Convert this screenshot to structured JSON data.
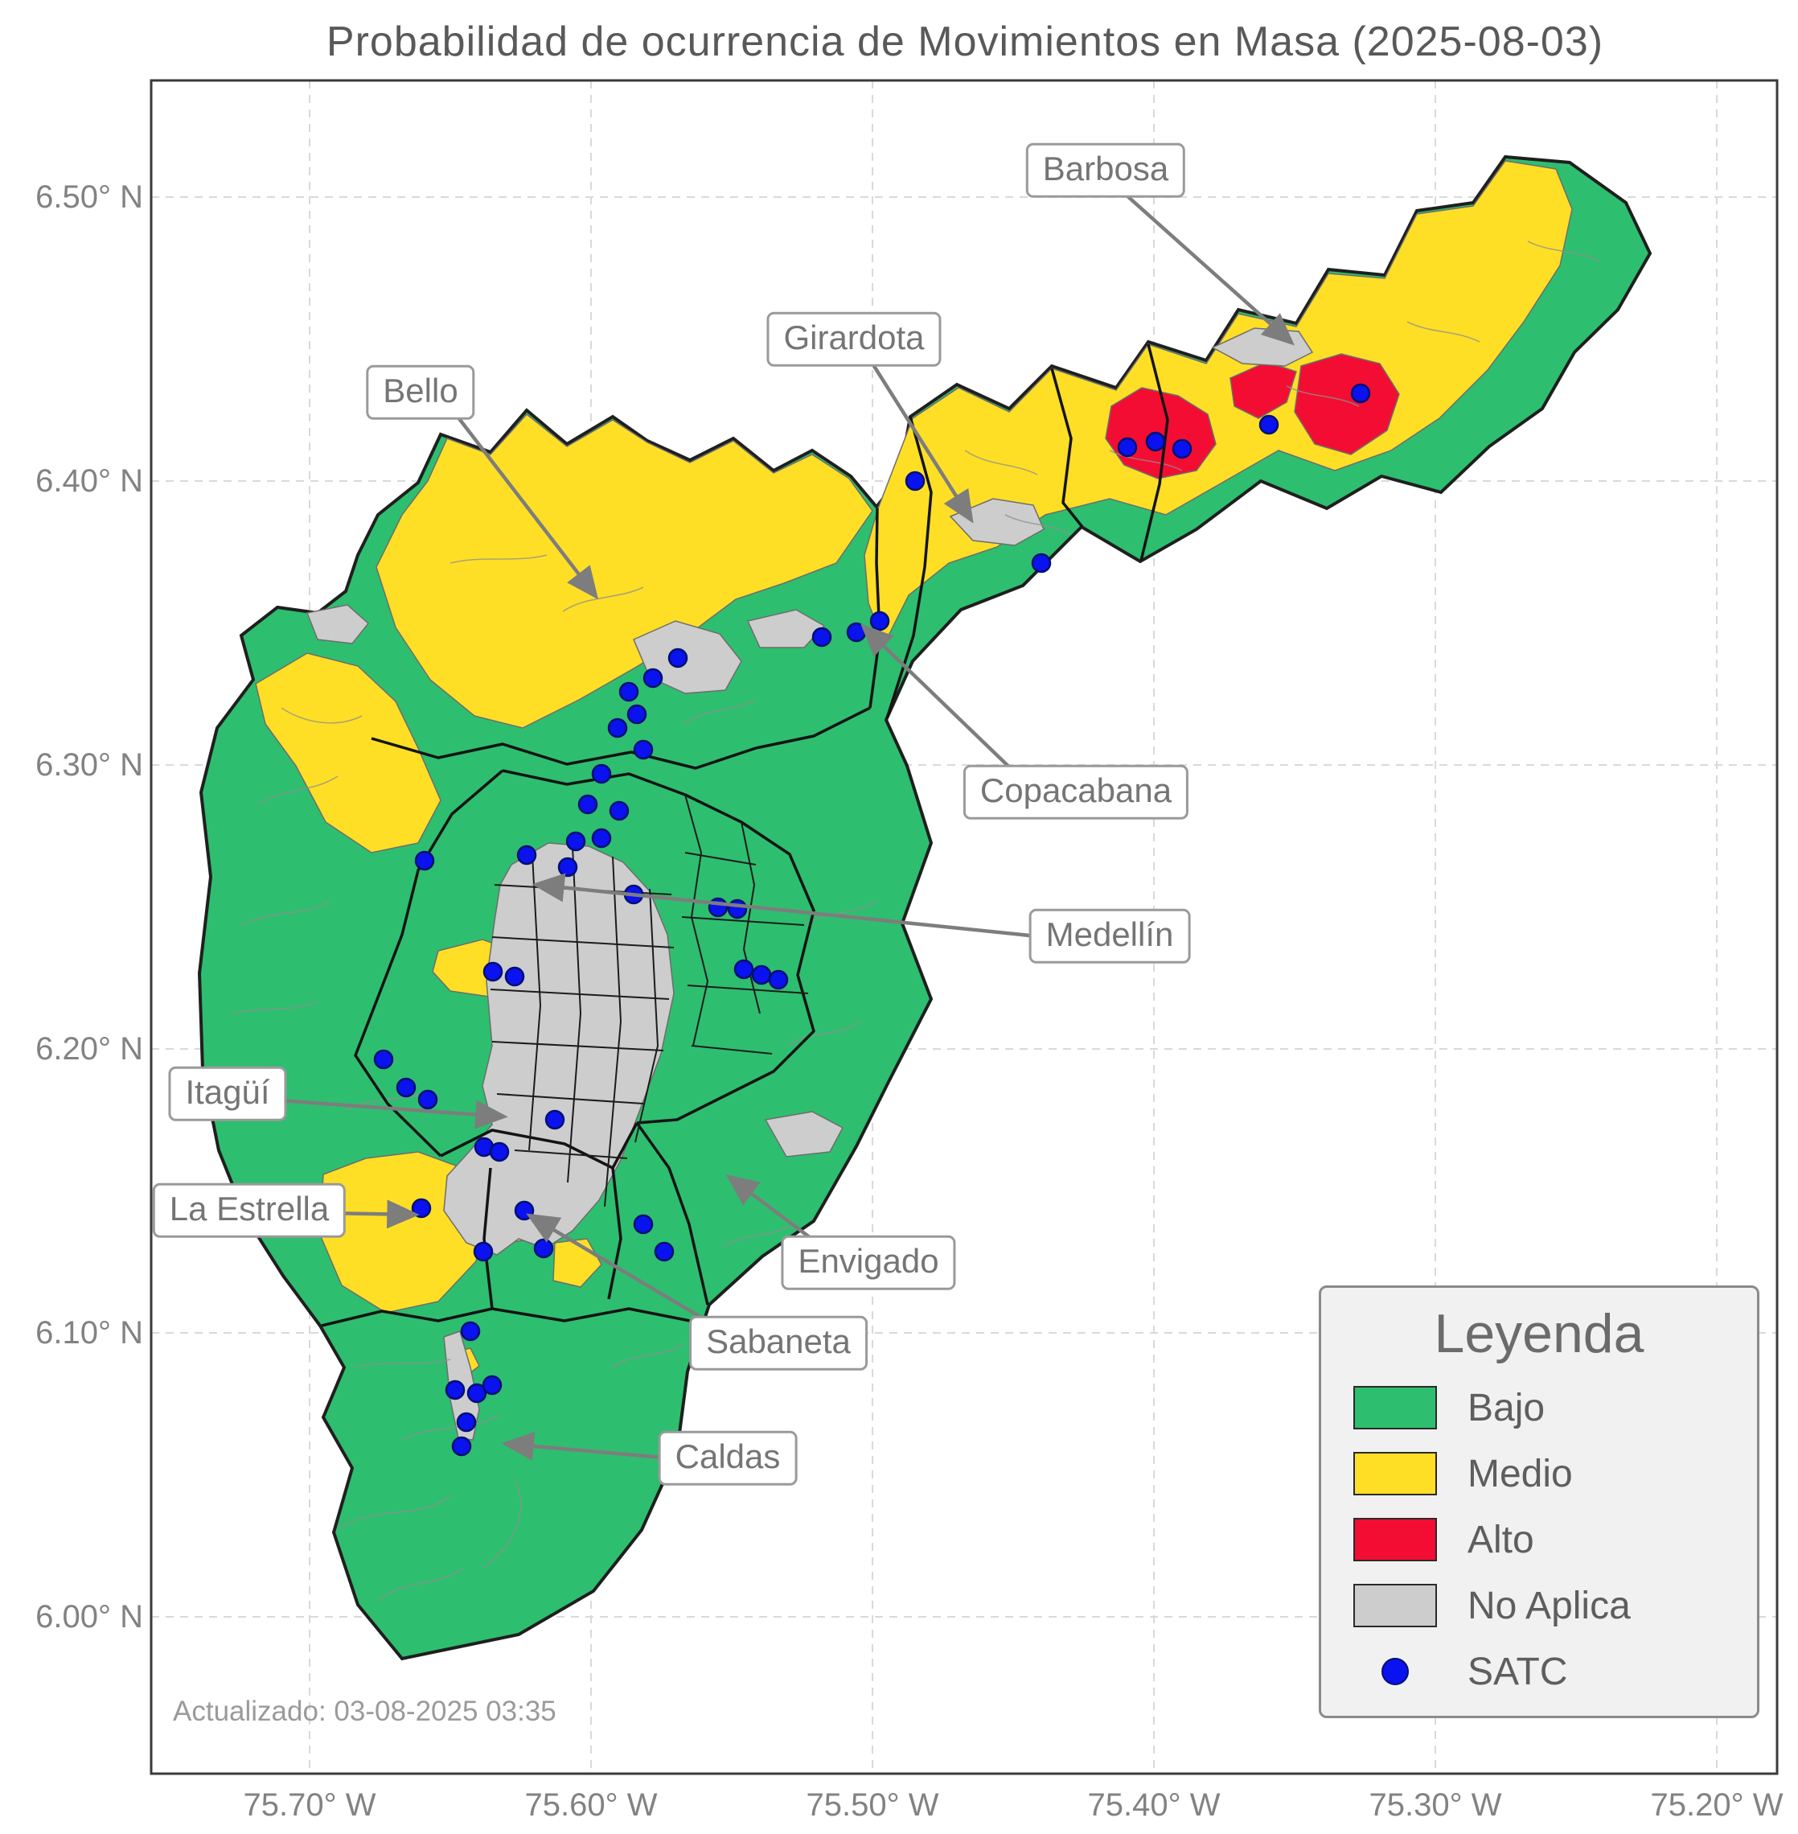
{
  "title": "Probabilidad de ocurrencia de Movimientos en Masa (2025-08-03)",
  "updated_text": "Actualizado: 03-08-2025 03:35",
  "axes": {
    "lat_ticks": [
      "6.50° N",
      "6.40° N",
      "6.30° N",
      "6.20° N",
      "6.10° N",
      "6.00° N"
    ],
    "lon_ticks": [
      "75.70° W",
      "75.60° W",
      "75.50° W",
      "75.40° W",
      "75.30° W",
      "75.20° W"
    ]
  },
  "legend": {
    "title": "Leyenda",
    "items": [
      {
        "label": "Bajo",
        "color": "#2ebe6f",
        "type": "swatch"
      },
      {
        "label": "Medio",
        "color": "#ffdf26",
        "type": "swatch"
      },
      {
        "label": "Alto",
        "color": "#f30d33",
        "type": "swatch"
      },
      {
        "label": "No Aplica",
        "color": "#cdcdcd",
        "type": "swatch"
      },
      {
        "label": "SATC",
        "color": "#0a12ef",
        "type": "dot"
      }
    ]
  },
  "callouts": [
    {
      "label": "Barbosa"
    },
    {
      "label": "Girardota"
    },
    {
      "label": "Bello"
    },
    {
      "label": "Copacabana"
    },
    {
      "label": "Medellín"
    },
    {
      "label": "Itagüí"
    },
    {
      "label": "La Estrella"
    },
    {
      "label": "Envigado"
    },
    {
      "label": "Sabaneta"
    },
    {
      "label": "Caldas"
    }
  ],
  "colors": {
    "bajo": "#2ebe6f",
    "medio": "#ffdf26",
    "alto": "#f30d33",
    "no_aplica": "#cdcdcd",
    "satc": "#0a12ef",
    "border": "#1f1f1f",
    "vereda": "#8f8f8f",
    "grid": "#d9d9d9"
  },
  "map": {
    "satc_points": [
      [
        1138,
        598
      ],
      [
        1295,
        700
      ],
      [
        1402,
        556
      ],
      [
        1437,
        549
      ],
      [
        1470,
        558
      ],
      [
        1578,
        528
      ],
      [
        1692,
        489
      ],
      [
        1022,
        792
      ],
      [
        1065,
        786
      ],
      [
        1094,
        772
      ],
      [
        843,
        818
      ],
      [
        812,
        843
      ],
      [
        782,
        860
      ],
      [
        792,
        888
      ],
      [
        768,
        905
      ],
      [
        800,
        932
      ],
      [
        748,
        962
      ],
      [
        731,
        1000
      ],
      [
        770,
        1008
      ],
      [
        716,
        1046
      ],
      [
        748,
        1042
      ],
      [
        706,
        1078
      ],
      [
        655,
        1063
      ],
      [
        528,
        1070
      ],
      [
        788,
        1112
      ],
      [
        893,
        1128
      ],
      [
        917,
        1130
      ],
      [
        925,
        1205
      ],
      [
        947,
        1212
      ],
      [
        968,
        1218
      ],
      [
        613,
        1208
      ],
      [
        640,
        1214
      ],
      [
        477,
        1317
      ],
      [
        505,
        1352
      ],
      [
        532,
        1367
      ],
      [
        690,
        1392
      ],
      [
        602,
        1426
      ],
      [
        621,
        1432
      ],
      [
        524,
        1502
      ],
      [
        652,
        1505
      ],
      [
        601,
        1556
      ],
      [
        676,
        1552
      ],
      [
        800,
        1522
      ],
      [
        826,
        1556
      ],
      [
        585,
        1655
      ],
      [
        566,
        1728
      ],
      [
        593,
        1732
      ],
      [
        612,
        1722
      ],
      [
        580,
        1768
      ],
      [
        574,
        1798
      ]
    ]
  }
}
